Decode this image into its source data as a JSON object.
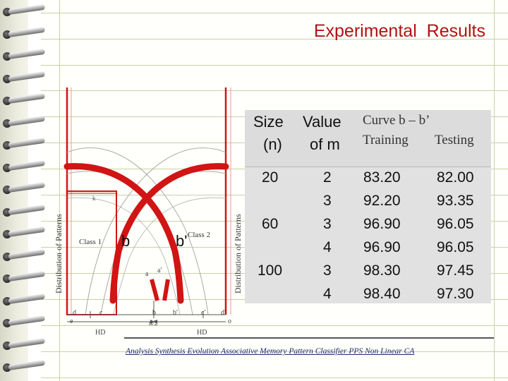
{
  "slide": {
    "title": "Experimental  Results"
  },
  "figure": {
    "y_axis_label_left": "Distribution of Patterns",
    "y_axis_label_right": "Distribution of Patterns",
    "class1_label": "Class 1",
    "class2_label": "Class 2",
    "curve_label_b": "b",
    "curve_label_b_prime": "b'",
    "point_labels": {
      "a": "a",
      "a_prime": "a'",
      "d": "d",
      "c": "c",
      "b": "b",
      "b_prime": "b'",
      "c_prime": "c'",
      "d_prime": "d'",
      "e": "e",
      "o": "o",
      "n_half": "n/2",
      "hd_left": "HD",
      "hd_right": "HD",
      "k": "k"
    },
    "colors": {
      "red": "#d11414",
      "line": "#555555"
    }
  },
  "table": {
    "headers": {
      "size": "Size",
      "size_unit": "(n)",
      "value": "Value",
      "value_unit": "of m",
      "curve": "Curve b – b’",
      "training": "Training",
      "testing": "Testing"
    },
    "sizes": [
      {
        "value": "20"
      },
      {
        "value": "60"
      },
      {
        "value": "100"
      }
    ],
    "rows": [
      {
        "m": "2",
        "training": "83.20",
        "testing": "82.00"
      },
      {
        "m": "3",
        "training": "92.20",
        "testing": "93.35"
      },
      {
        "m": "3",
        "training": "96.90",
        "testing": "96.05"
      },
      {
        "m": "4",
        "training": "96.90",
        "testing": "96.05"
      },
      {
        "m": "3",
        "training": "98.30",
        "testing": "97.45"
      },
      {
        "m": "4",
        "training": "98.40",
        "testing": "97.30"
      }
    ]
  },
  "footer": {
    "parts": [
      "Analysis",
      " ",
      "Synthesis",
      " ",
      "Evolution",
      " ",
      "Associative Memory",
      " ",
      "Pattern Classifier",
      " ",
      "PPS",
      " ",
      "Non Linear CA"
    ]
  }
}
